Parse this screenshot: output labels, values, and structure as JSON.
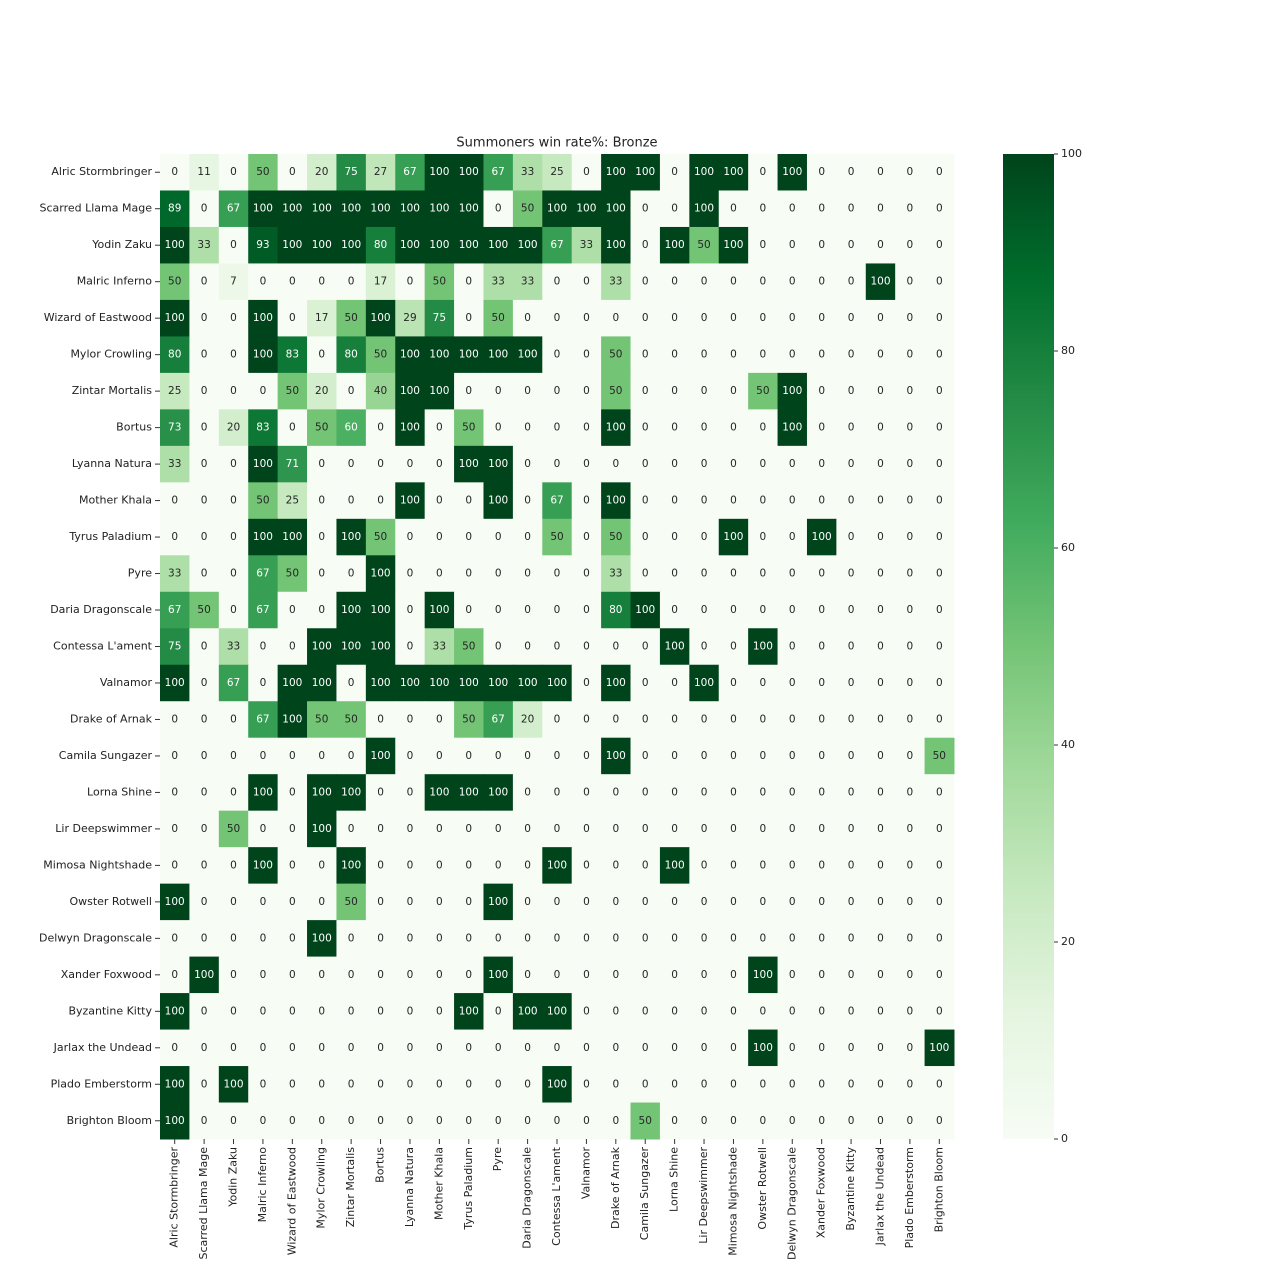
{
  "chart_data": {
    "type": "heatmap",
    "title": "Summoners win rate%: Bronze",
    "rows": [
      "Alric Stormbringer",
      "Scarred Llama Mage",
      "Yodin Zaku",
      "Malric Inferno",
      "Wizard of Eastwood",
      "Mylor Crowling",
      "Zintar Mortalis",
      "Bortus",
      "Lyanna Natura",
      "Mother Khala",
      "Tyrus Paladium",
      "Pyre",
      "Daria Dragonscale",
      "Contessa L'ament",
      "Valnamor",
      "Drake of Arnak",
      "Camila Sungazer",
      "Lorna Shine",
      "Lir Deepswimmer",
      "Mimosa Nightshade",
      "Owster Rotwell",
      "Delwyn Dragonscale",
      "Xander Foxwood",
      "Byzantine Kitty",
      "Jarlax the Undead",
      "Plado Emberstorm",
      "Brighton Bloom"
    ],
    "columns": [
      "Alric Stormbringer",
      "Scarred Llama Mage",
      "Yodin Zaku",
      "Malric Inferno",
      "Wizard of Eastwood",
      "Mylor Crowling",
      "Zintar Mortalis",
      "Bortus",
      "Lyanna Natura",
      "Mother Khala",
      "Tyrus Paladium",
      "Pyre",
      "Daria Dragonscale",
      "Contessa L'ament",
      "Valnamor",
      "Drake of Arnak",
      "Camila Sungazer",
      "Lorna Shine",
      "Lir Deepswimmer",
      "Mimosa Nightshade",
      "Owster Rotwell",
      "Delwyn Dragonscale",
      "Xander Foxwood",
      "Byzantine Kitty",
      "Jarlax the Undead",
      "Plado Emberstorm",
      "Brighton Bloom"
    ],
    "values": [
      [
        0,
        11,
        0,
        50,
        0,
        20,
        75,
        27,
        67,
        100,
        100,
        67,
        33,
        25,
        0,
        100,
        100,
        0,
        100,
        100,
        0,
        100,
        0,
        0,
        0,
        0,
        0
      ],
      [
        89,
        0,
        67,
        100,
        100,
        100,
        100,
        100,
        100,
        100,
        100,
        0,
        50,
        100,
        100,
        100,
        0,
        0,
        100,
        0,
        0,
        0,
        0,
        0,
        0,
        0,
        0
      ],
      [
        100,
        33,
        0,
        93,
        100,
        100,
        100,
        80,
        100,
        100,
        100,
        100,
        100,
        67,
        33,
        100,
        0,
        100,
        50,
        100,
        0,
        0,
        0,
        0,
        0,
        0,
        0
      ],
      [
        50,
        0,
        7,
        0,
        0,
        0,
        0,
        17,
        0,
        50,
        0,
        33,
        33,
        0,
        0,
        33,
        0,
        0,
        0,
        0,
        0,
        0,
        0,
        0,
        100,
        0,
        0
      ],
      [
        100,
        0,
        0,
        100,
        0,
        17,
        50,
        100,
        29,
        75,
        0,
        50,
        0,
        0,
        0,
        0,
        0,
        0,
        0,
        0,
        0,
        0,
        0,
        0,
        0,
        0,
        0
      ],
      [
        80,
        0,
        0,
        100,
        83,
        0,
        80,
        50,
        100,
        100,
        100,
        100,
        100,
        0,
        0,
        50,
        0,
        0,
        0,
        0,
        0,
        0,
        0,
        0,
        0,
        0,
        0
      ],
      [
        25,
        0,
        0,
        0,
        50,
        20,
        0,
        40,
        100,
        100,
        0,
        0,
        0,
        0,
        0,
        50,
        0,
        0,
        0,
        0,
        50,
        100,
        0,
        0,
        0,
        0,
        0
      ],
      [
        73,
        0,
        20,
        83,
        0,
        50,
        60,
        0,
        100,
        0,
        50,
        0,
        0,
        0,
        0,
        100,
        0,
        0,
        0,
        0,
        0,
        100,
        0,
        0,
        0,
        0,
        0
      ],
      [
        33,
        0,
        0,
        100,
        71,
        0,
        0,
        0,
        0,
        0,
        100,
        100,
        0,
        0,
        0,
        0,
        0,
        0,
        0,
        0,
        0,
        0,
        0,
        0,
        0,
        0,
        0
      ],
      [
        0,
        0,
        0,
        50,
        25,
        0,
        0,
        0,
        100,
        0,
        0,
        100,
        0,
        67,
        0,
        100,
        0,
        0,
        0,
        0,
        0,
        0,
        0,
        0,
        0,
        0,
        0
      ],
      [
        0,
        0,
        0,
        100,
        100,
        0,
        100,
        50,
        0,
        0,
        0,
        0,
        0,
        50,
        0,
        50,
        0,
        0,
        0,
        100,
        0,
        0,
        100,
        0,
        0,
        0,
        0
      ],
      [
        33,
        0,
        0,
        67,
        50,
        0,
        0,
        100,
        0,
        0,
        0,
        0,
        0,
        0,
        0,
        33,
        0,
        0,
        0,
        0,
        0,
        0,
        0,
        0,
        0,
        0,
        0
      ],
      [
        67,
        50,
        0,
        67,
        0,
        0,
        100,
        100,
        0,
        100,
        0,
        0,
        0,
        0,
        0,
        80,
        100,
        0,
        0,
        0,
        0,
        0,
        0,
        0,
        0,
        0,
        0
      ],
      [
        75,
        0,
        33,
        0,
        0,
        100,
        100,
        100,
        0,
        33,
        50,
        0,
        0,
        0,
        0,
        0,
        0,
        100,
        0,
        0,
        100,
        0,
        0,
        0,
        0,
        0,
        0
      ],
      [
        100,
        0,
        67,
        0,
        100,
        100,
        0,
        100,
        100,
        100,
        100,
        100,
        100,
        100,
        0,
        100,
        0,
        0,
        100,
        0,
        0,
        0,
        0,
        0,
        0,
        0,
        0
      ],
      [
        0,
        0,
        0,
        67,
        100,
        50,
        50,
        0,
        0,
        0,
        50,
        67,
        20,
        0,
        0,
        0,
        0,
        0,
        0,
        0,
        0,
        0,
        0,
        0,
        0,
        0,
        0
      ],
      [
        0,
        0,
        0,
        0,
        0,
        0,
        0,
        100,
        0,
        0,
        0,
        0,
        0,
        0,
        0,
        100,
        0,
        0,
        0,
        0,
        0,
        0,
        0,
        0,
        0,
        0,
        50
      ],
      [
        0,
        0,
        0,
        100,
        0,
        100,
        100,
        0,
        0,
        100,
        100,
        100,
        0,
        0,
        0,
        0,
        0,
        0,
        0,
        0,
        0,
        0,
        0,
        0,
        0,
        0,
        0
      ],
      [
        0,
        0,
        50,
        0,
        0,
        100,
        0,
        0,
        0,
        0,
        0,
        0,
        0,
        0,
        0,
        0,
        0,
        0,
        0,
        0,
        0,
        0,
        0,
        0,
        0,
        0,
        0
      ],
      [
        0,
        0,
        0,
        100,
        0,
        0,
        100,
        0,
        0,
        0,
        0,
        0,
        0,
        100,
        0,
        0,
        0,
        100,
        0,
        0,
        0,
        0,
        0,
        0,
        0,
        0,
        0
      ],
      [
        100,
        0,
        0,
        0,
        0,
        0,
        50,
        0,
        0,
        0,
        0,
        100,
        0,
        0,
        0,
        0,
        0,
        0,
        0,
        0,
        0,
        0,
        0,
        0,
        0,
        0,
        0
      ],
      [
        0,
        0,
        0,
        0,
        0,
        100,
        0,
        0,
        0,
        0,
        0,
        0,
        0,
        0,
        0,
        0,
        0,
        0,
        0,
        0,
        0,
        0,
        0,
        0,
        0,
        0,
        0
      ],
      [
        0,
        100,
        0,
        0,
        0,
        0,
        0,
        0,
        0,
        0,
        0,
        100,
        0,
        0,
        0,
        0,
        0,
        0,
        0,
        0,
        100,
        0,
        0,
        0,
        0,
        0,
        0
      ],
      [
        100,
        0,
        0,
        0,
        0,
        0,
        0,
        0,
        0,
        0,
        100,
        0,
        100,
        100,
        0,
        0,
        0,
        0,
        0,
        0,
        0,
        0,
        0,
        0,
        0,
        0,
        0
      ],
      [
        0,
        0,
        0,
        0,
        0,
        0,
        0,
        0,
        0,
        0,
        0,
        0,
        0,
        0,
        0,
        0,
        0,
        0,
        0,
        0,
        100,
        0,
        0,
        0,
        0,
        0,
        100
      ],
      [
        100,
        0,
        100,
        0,
        0,
        0,
        0,
        0,
        0,
        0,
        0,
        0,
        0,
        100,
        0,
        0,
        0,
        0,
        0,
        0,
        0,
        0,
        0,
        0,
        0,
        0,
        0
      ],
      [
        100,
        0,
        0,
        0,
        0,
        0,
        0,
        0,
        0,
        0,
        0,
        0,
        0,
        0,
        0,
        0,
        50,
        0,
        0,
        0,
        0,
        0,
        0,
        0,
        0,
        0,
        0
      ]
    ],
    "clim": [
      0,
      100
    ],
    "cticks": [
      0,
      20,
      40,
      60,
      80,
      100
    ],
    "colorscale": [
      "#f7fcf5",
      "#e5f5e0",
      "#c7e9c0",
      "#a1d99b",
      "#74c476",
      "#41ab5d",
      "#238b45",
      "#006d2c",
      "#00441b"
    ]
  }
}
